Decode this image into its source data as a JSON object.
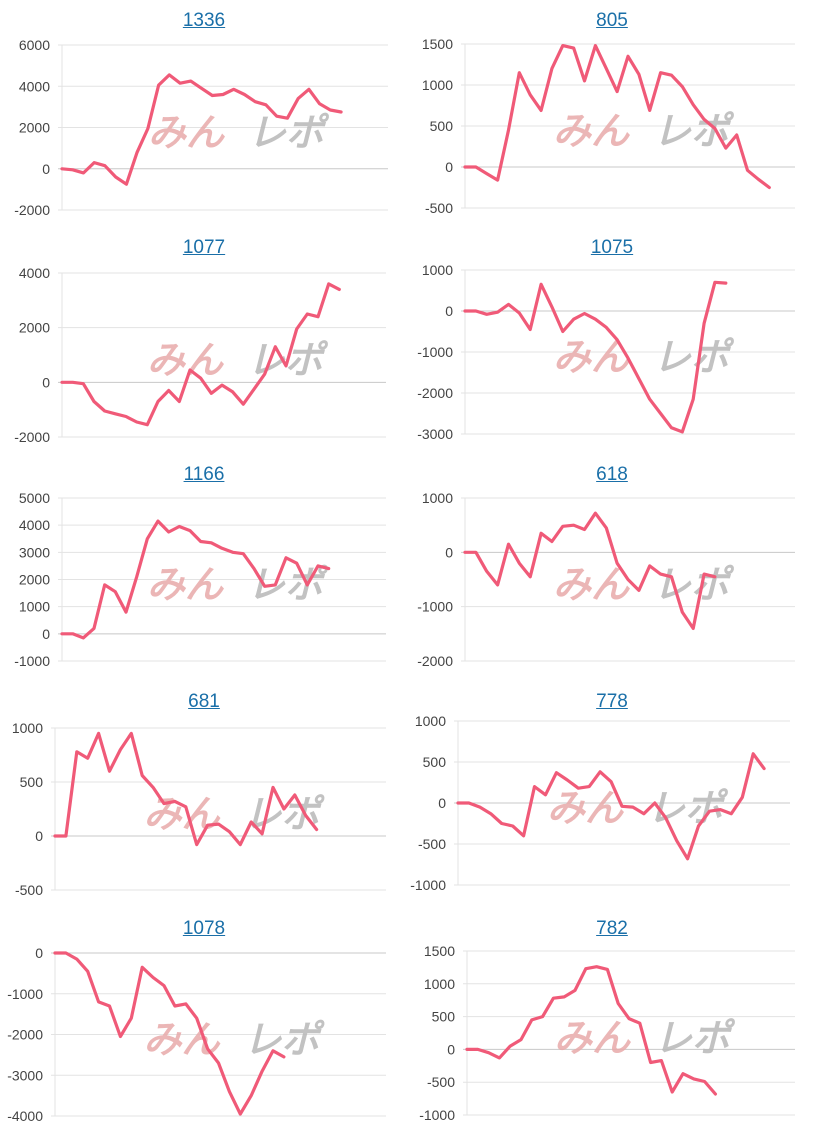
{
  "colors": {
    "line": "#f05a78",
    "grid": "#e3e3e3",
    "zero": "#c8c8c8",
    "title": "#1a6fa8",
    "watermark_a": "#e8aaaa",
    "watermark_b": "#b8b8b8"
  },
  "watermark": "みんレポ",
  "chart_data": [
    {
      "type": "line",
      "title": "1336",
      "yticks": [
        6000,
        4000,
        2000,
        0,
        -2000
      ],
      "ylim": [
        -2000,
        6000
      ],
      "values": [
        0,
        -50,
        -200,
        300,
        150,
        -400,
        -750,
        800,
        1950,
        4050,
        4550,
        4150,
        4250,
        3900,
        3550,
        3600,
        3850,
        3600,
        3250,
        3100,
        2550,
        2450,
        3400,
        3850,
        3150,
        2850,
        2750
      ]
    },
    {
      "type": "line",
      "title": "805",
      "yticks": [
        1500,
        1000,
        500,
        0,
        -500
      ],
      "ylim": [
        -500,
        1500
      ],
      "values": [
        0,
        0,
        -80,
        -160,
        450,
        1150,
        880,
        690,
        1200,
        1480,
        1450,
        1050,
        1480,
        1200,
        920,
        1350,
        1130,
        690,
        1150,
        1120,
        980,
        760,
        580,
        470,
        230,
        390,
        -40,
        -150,
        -250
      ]
    },
    {
      "type": "line",
      "title": "1077",
      "yticks": [
        4000,
        2000,
        0,
        -2000
      ],
      "ylim": [
        -2000,
        4000
      ],
      "values": [
        0,
        0,
        -50,
        -700,
        -1050,
        -1150,
        -1250,
        -1450,
        -1550,
        -700,
        -300,
        -700,
        450,
        150,
        -400,
        -100,
        -350,
        -800,
        -250,
        300,
        1300,
        600,
        1950,
        2500,
        2400,
        3600,
        3400
      ]
    },
    {
      "type": "line",
      "title": "1075",
      "yticks": [
        1000,
        0,
        -1000,
        -2000,
        -3000
      ],
      "ylim": [
        -3000,
        1000
      ],
      "values": [
        0,
        0,
        -80,
        -30,
        160,
        -50,
        -450,
        650,
        100,
        -500,
        -200,
        -60,
        -200,
        -400,
        -700,
        -1150,
        -1650,
        -2150,
        -2500,
        -2850,
        -2950,
        -2150,
        -300,
        700,
        680
      ]
    },
    {
      "type": "line",
      "title": "1166",
      "yticks": [
        5000,
        4000,
        3000,
        2000,
        1000,
        0,
        -1000
      ],
      "ylim": [
        -1000,
        5000
      ],
      "values": [
        0,
        0,
        -150,
        200,
        1800,
        1550,
        800,
        2100,
        3500,
        4150,
        3750,
        3950,
        3800,
        3400,
        3350,
        3150,
        3000,
        2950,
        2400,
        1750,
        1800,
        2800,
        2600,
        1800,
        2500,
        2400
      ]
    },
    {
      "type": "line",
      "title": "618",
      "yticks": [
        1000,
        0,
        -1000,
        -2000
      ],
      "ylim": [
        -2000,
        1000
      ],
      "values": [
        0,
        0,
        -350,
        -600,
        150,
        -200,
        -450,
        350,
        200,
        480,
        500,
        420,
        720,
        450,
        -200,
        -500,
        -700,
        -250,
        -400,
        -450,
        -1100,
        -1400,
        -400,
        -450
      ]
    },
    {
      "type": "line",
      "title": "681",
      "yticks": [
        1000,
        500,
        0,
        -500
      ],
      "ylim": [
        -500,
        1000
      ],
      "values": [
        0,
        0,
        780,
        720,
        950,
        600,
        800,
        950,
        560,
        450,
        300,
        320,
        270,
        -80,
        100,
        110,
        40,
        -80,
        130,
        20,
        450,
        250,
        380,
        190,
        60
      ]
    },
    {
      "type": "line",
      "title": "778",
      "yticks": [
        1000,
        500,
        0,
        -500,
        -1000
      ],
      "ylim": [
        -1000,
        1000
      ],
      "values": [
        0,
        0,
        -50,
        -130,
        -250,
        -280,
        -400,
        200,
        100,
        370,
        280,
        180,
        200,
        380,
        260,
        -40,
        -50,
        -130,
        0,
        -180,
        -460,
        -680,
        -280,
        -100,
        -80,
        -130,
        70,
        600,
        420
      ]
    },
    {
      "type": "line",
      "title": "1078",
      "yticks": [
        0,
        -1000,
        -2000,
        -3000,
        -4000
      ],
      "ylim": [
        -4000,
        0
      ],
      "values": [
        0,
        0,
        -150,
        -450,
        -1200,
        -1300,
        -2050,
        -1600,
        -350,
        -600,
        -800,
        -1300,
        -1250,
        -1600,
        -2350,
        -2700,
        -3400,
        -3950,
        -3500,
        -2900,
        -2400,
        -2550
      ]
    },
    {
      "type": "line",
      "title": "782",
      "yticks": [
        1500,
        1000,
        500,
        0,
        -500,
        -1000
      ],
      "ylim": [
        -1000,
        1500
      ],
      "values": [
        0,
        0,
        -50,
        -130,
        50,
        150,
        450,
        500,
        780,
        800,
        900,
        1230,
        1260,
        1220,
        700,
        470,
        400,
        -200,
        -170,
        -650,
        -370,
        -450,
        -490,
        -680
      ]
    }
  ]
}
